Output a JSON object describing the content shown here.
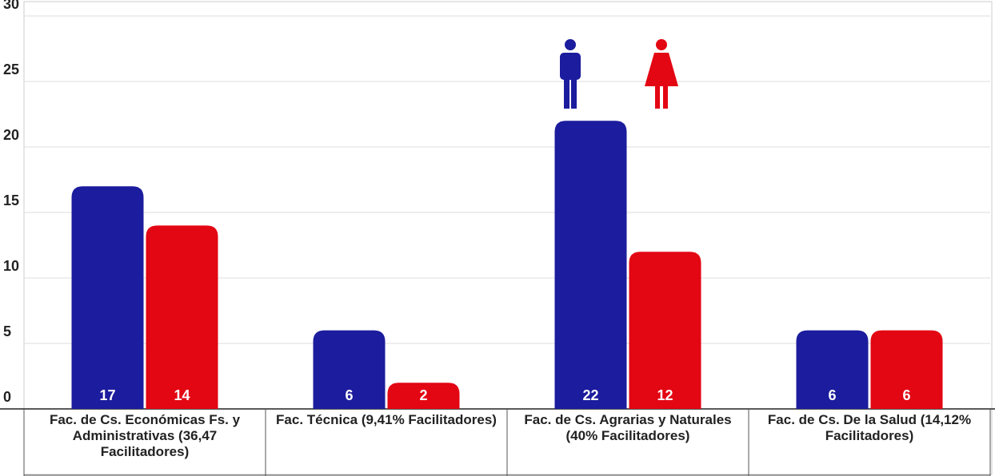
{
  "chart_data": {
    "type": "bar",
    "categories": [
      "Fac. de Cs. Económicas Fs. y Administrativas (36,47 Facilitadores)",
      "Fac. Técnica (9,41% Facilitadores)",
      "Fac. de Cs. Agrarias y Naturales (40% Facilitadores)",
      "Fac. de Cs. De la Salud (14,12% Facilitadores)"
    ],
    "series": [
      {
        "color": "#1c1c9e",
        "values": [
          17,
          6,
          22,
          6
        ]
      },
      {
        "color": "#e30613",
        "values": [
          14,
          2,
          12,
          6
        ]
      }
    ],
    "ylim": [
      0,
      30
    ],
    "yticks": [
      0,
      5,
      10,
      15,
      20,
      25,
      30
    ],
    "grid": true
  }
}
